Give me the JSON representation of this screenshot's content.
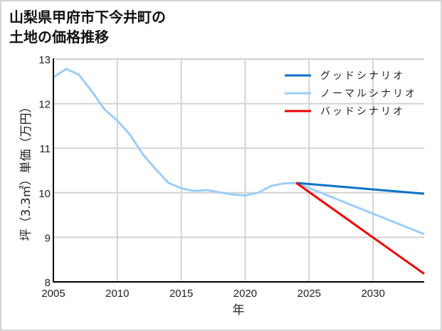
{
  "title_line1": "山梨県甲府市下今井町の",
  "title_line2": "土地の価格推移",
  "chart_data": {
    "type": "line",
    "title": "山梨県甲府市下今井町の土地の価格推移",
    "xlabel": "年",
    "ylabel": "坪（3.3㎡）単価（万円）",
    "xlim": [
      2005,
      2034
    ],
    "ylim": [
      8,
      13
    ],
    "xticks": [
      "2005",
      "2010",
      "2015",
      "2020",
      "2025",
      "2030"
    ],
    "yticks": [
      "8",
      "9",
      "10",
      "11",
      "12",
      "13"
    ],
    "grid": true,
    "legend_position": "upper right",
    "series": [
      {
        "name": "グッドシナリオ",
        "color": "#0a72c8",
        "x": [
          2024,
          2034
        ],
        "values": [
          10.22,
          9.98
        ]
      },
      {
        "name": "ノーマルシナリオ",
        "color": "#9dcdfa",
        "x": [
          2005,
          2006,
          2007,
          2008,
          2009,
          2010,
          2011,
          2012,
          2013,
          2014,
          2015,
          2016,
          2017,
          2018,
          2019,
          2020,
          2021,
          2022,
          2023,
          2024,
          2034
        ],
        "values": [
          12.59,
          12.78,
          12.65,
          12.28,
          11.87,
          11.62,
          11.3,
          10.86,
          10.53,
          10.22,
          10.1,
          10.04,
          10.06,
          10.01,
          9.96,
          9.94,
          10.0,
          10.15,
          10.21,
          10.22,
          9.07
        ]
      },
      {
        "name": "バッドシナリオ",
        "color": "#f00000",
        "x": [
          2024,
          2034
        ],
        "values": [
          10.22,
          8.18
        ]
      }
    ]
  }
}
